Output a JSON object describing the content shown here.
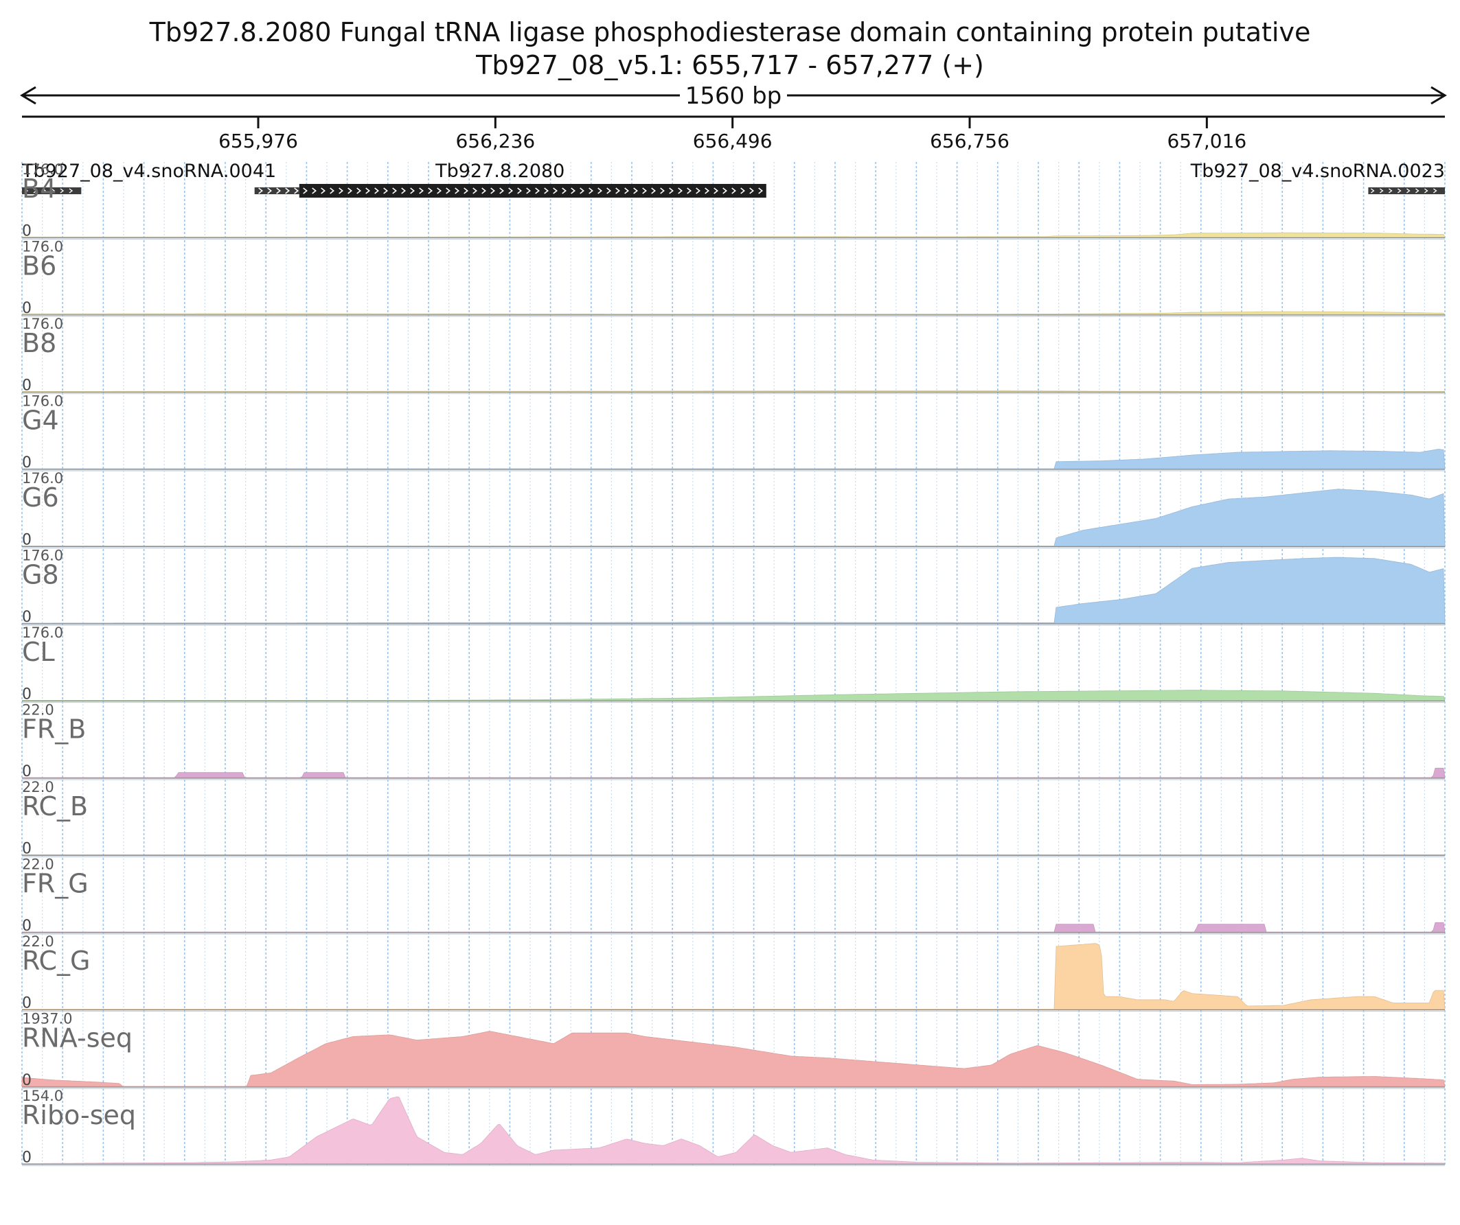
{
  "chart_data": {
    "type": "area",
    "title": "Tb927.8.2080  Fungal tRNA ligase phosphodiesterase domain containing protein  putative",
    "subtitle": "Tb927_08_v5.1: 655,717 - 657,277 (+)",
    "span_label": "1560 bp",
    "x_range": [
      655717,
      657277
    ],
    "x_ticks": [
      {
        "value": 655976,
        "label": "655,976"
      },
      {
        "value": 656236,
        "label": "656,236"
      },
      {
        "value": 656496,
        "label": "656,496"
      },
      {
        "value": 656756,
        "label": "656,756"
      },
      {
        "value": 657016,
        "label": "657,016"
      }
    ],
    "grid": true,
    "features": [
      {
        "label": "Tb927_08_v4.snoRNA.0041",
        "start": 655717,
        "end": 655782,
        "style": "small"
      },
      {
        "label": "Tb927.8.2080",
        "start": 655972,
        "end": 656533,
        "style": "gene",
        "utr_end": 656021
      },
      {
        "label": "Tb927_08_v4.snoRNA.0023",
        "start": 657193,
        "end": 657277,
        "style": "small"
      }
    ],
    "tracks": [
      {
        "name": "B4",
        "max": "176.0",
        "min": "0",
        "ymax": 176,
        "color": "#efe29a",
        "points": [
          [
            655717,
            0.5
          ],
          [
            656200,
            0.8
          ],
          [
            656500,
            1.5
          ],
          [
            656700,
            1.2
          ],
          [
            656840,
            1.5
          ],
          [
            656850,
            3
          ],
          [
            656950,
            4
          ],
          [
            656980,
            6
          ],
          [
            657000,
            10
          ],
          [
            657100,
            11
          ],
          [
            657200,
            10.5
          ],
          [
            657240,
            8
          ],
          [
            657277,
            7
          ]
        ]
      },
      {
        "name": "B6",
        "max": "176.0",
        "min": "0",
        "ymax": 176,
        "color": "#efe29a",
        "points": [
          [
            655717,
            1.5
          ],
          [
            656000,
            2
          ],
          [
            656300,
            1
          ],
          [
            656600,
            0.8
          ],
          [
            656850,
            1
          ],
          [
            656970,
            3
          ],
          [
            657000,
            5
          ],
          [
            657100,
            7
          ],
          [
            657200,
            6
          ],
          [
            657250,
            4
          ],
          [
            657277,
            3
          ]
        ]
      },
      {
        "name": "B8",
        "max": "176.0",
        "min": "0",
        "ymax": 176,
        "color": "#efe29a",
        "points": [
          [
            655717,
            0.2
          ],
          [
            656200,
            0.5
          ],
          [
            656400,
            1
          ],
          [
            656600,
            2
          ],
          [
            656800,
            2.2
          ],
          [
            656880,
            1
          ],
          [
            657000,
            0.3
          ],
          [
            657277,
            0.2
          ]
        ]
      },
      {
        "name": "G4",
        "max": "176.0",
        "min": "0",
        "ymax": 176,
        "color": "#a9cdef",
        "points": [
          [
            655717,
            0
          ],
          [
            656849,
            0
          ],
          [
            656850,
            18
          ],
          [
            656900,
            20
          ],
          [
            656950,
            25
          ],
          [
            657000,
            35
          ],
          [
            657050,
            42
          ],
          [
            657100,
            44
          ],
          [
            657150,
            46
          ],
          [
            657200,
            45
          ],
          [
            657250,
            42
          ],
          [
            657270,
            50
          ],
          [
            657277,
            48
          ]
        ]
      },
      {
        "name": "G6",
        "max": "176.0",
        "min": "0",
        "ymax": 176,
        "color": "#a9cdef",
        "points": [
          [
            655717,
            0
          ],
          [
            656849,
            0
          ],
          [
            656850,
            20
          ],
          [
            656880,
            40
          ],
          [
            656920,
            55
          ],
          [
            656960,
            70
          ],
          [
            657000,
            100
          ],
          [
            657040,
            120
          ],
          [
            657080,
            125
          ],
          [
            657120,
            135
          ],
          [
            657160,
            145
          ],
          [
            657200,
            140
          ],
          [
            657240,
            130
          ],
          [
            657260,
            120
          ],
          [
            657277,
            135
          ]
        ]
      },
      {
        "name": "G8",
        "max": "176.0",
        "min": "0",
        "ymax": 176,
        "color": "#a9cdef",
        "points": [
          [
            655717,
            0
          ],
          [
            656100,
            1
          ],
          [
            656500,
            2
          ],
          [
            656849,
            1
          ],
          [
            656850,
            40
          ],
          [
            656880,
            50
          ],
          [
            656920,
            60
          ],
          [
            656960,
            75
          ],
          [
            657000,
            140
          ],
          [
            657040,
            155
          ],
          [
            657080,
            160
          ],
          [
            657120,
            165
          ],
          [
            657160,
            168
          ],
          [
            657200,
            165
          ],
          [
            657240,
            150
          ],
          [
            657260,
            130
          ],
          [
            657277,
            140
          ]
        ]
      },
      {
        "name": "CL",
        "max": "176.0",
        "min": "0",
        "ymax": 176,
        "color": "#b2deaa",
        "points": [
          [
            655717,
            0
          ],
          [
            656150,
            0
          ],
          [
            656300,
            2
          ],
          [
            656450,
            6
          ],
          [
            656600,
            14
          ],
          [
            656700,
            18
          ],
          [
            656800,
            22
          ],
          [
            656900,
            24
          ],
          [
            657000,
            26
          ],
          [
            657100,
            24
          ],
          [
            657200,
            18
          ],
          [
            657250,
            12
          ],
          [
            657277,
            10
          ]
        ]
      },
      {
        "name": "FR_B",
        "max": "22.0",
        "min": "0",
        "ymax": 22,
        "color": "#d9a9d2",
        "points": [
          [
            655717,
            0
          ],
          [
            655886,
            0
          ],
          [
            655887,
            1.6
          ],
          [
            655960,
            1.6
          ],
          [
            655961,
            0
          ],
          [
            656024,
            0
          ],
          [
            656025,
            1.6
          ],
          [
            656070,
            1.6
          ],
          [
            656071,
            0
          ],
          [
            657264,
            0
          ],
          [
            657265,
            3
          ],
          [
            657277,
            3
          ]
        ]
      },
      {
        "name": "RC_B",
        "max": "22.0",
        "min": "0",
        "ymax": 22,
        "color": "#d9a9d2",
        "points": [
          [
            655717,
            0
          ],
          [
            657277,
            0
          ]
        ]
      },
      {
        "name": "FR_G",
        "max": "22.0",
        "min": "0",
        "ymax": 22,
        "color": "#d9a9d2",
        "points": [
          [
            655717,
            0
          ],
          [
            656849,
            0
          ],
          [
            656850,
            2.5
          ],
          [
            656892,
            2.5
          ],
          [
            656893,
            0
          ],
          [
            657004,
            0
          ],
          [
            657005,
            2.5
          ],
          [
            657080,
            2.5
          ],
          [
            657081,
            0
          ],
          [
            657264,
            0
          ],
          [
            657265,
            3
          ],
          [
            657277,
            3
          ]
        ]
      },
      {
        "name": "RC_G",
        "max": "22.0",
        "min": "0",
        "ymax": 22,
        "color": "#fcd4a4",
        "points": [
          [
            655717,
            0
          ],
          [
            656849,
            0
          ],
          [
            656850,
            20
          ],
          [
            656895,
            21
          ],
          [
            656900,
            20
          ],
          [
            656903,
            4
          ],
          [
            656920,
            4
          ],
          [
            656940,
            3
          ],
          [
            656970,
            3
          ],
          [
            656980,
            2.5
          ],
          [
            656990,
            6
          ],
          [
            657000,
            5
          ],
          [
            657050,
            4
          ],
          [
            657060,
            1
          ],
          [
            657100,
            1.2
          ],
          [
            657130,
            3
          ],
          [
            657180,
            4
          ],
          [
            657200,
            4
          ],
          [
            657220,
            2
          ],
          [
            657260,
            2
          ],
          [
            657265,
            6
          ],
          [
            657277,
            6
          ]
        ]
      },
      {
        "name": "RNA-seq",
        "max": "1937.0",
        "min": "0",
        "ymax": 1937,
        "color": "#f2aeac",
        "points": [
          [
            655717,
            250
          ],
          [
            655750,
            180
          ],
          [
            655800,
            120
          ],
          [
            655825,
            80
          ],
          [
            655826,
            0
          ],
          [
            655965,
            0
          ],
          [
            655966,
            300
          ],
          [
            655990,
            380
          ],
          [
            656020,
            800
          ],
          [
            656050,
            1200
          ],
          [
            656080,
            1400
          ],
          [
            656120,
            1450
          ],
          [
            656150,
            1300
          ],
          [
            656200,
            1400
          ],
          [
            656230,
            1550
          ],
          [
            656250,
            1450
          ],
          [
            656300,
            1200
          ],
          [
            656320,
            1500
          ],
          [
            656380,
            1500
          ],
          [
            656400,
            1400
          ],
          [
            656450,
            1250
          ],
          [
            656500,
            1100
          ],
          [
            656560,
            850
          ],
          [
            656600,
            800
          ],
          [
            656650,
            700
          ],
          [
            656700,
            600
          ],
          [
            656750,
            500
          ],
          [
            656780,
            600
          ],
          [
            656800,
            900
          ],
          [
            656830,
            1150
          ],
          [
            656860,
            950
          ],
          [
            656900,
            600
          ],
          [
            656940,
            200
          ],
          [
            656980,
            150
          ],
          [
            657000,
            50
          ],
          [
            657050,
            60
          ],
          [
            657070,
            80
          ],
          [
            657090,
            100
          ],
          [
            657100,
            150
          ],
          [
            657110,
            200
          ],
          [
            657140,
            260
          ],
          [
            657200,
            280
          ],
          [
            657250,
            220
          ],
          [
            657277,
            180
          ]
        ]
      },
      {
        "name": "Ribo-seq",
        "max": "154.0",
        "min": "0",
        "ymax": 154,
        "color": "#f5c2dc",
        "points": [
          [
            655717,
            0
          ],
          [
            655800,
            1
          ],
          [
            655900,
            2
          ],
          [
            655950,
            4
          ],
          [
            655990,
            8
          ],
          [
            656010,
            15
          ],
          [
            656040,
            60
          ],
          [
            656080,
            100
          ],
          [
            656100,
            85
          ],
          [
            656120,
            145
          ],
          [
            656130,
            150
          ],
          [
            656150,
            60
          ],
          [
            656180,
            25
          ],
          [
            656200,
            20
          ],
          [
            656220,
            45
          ],
          [
            656240,
            90
          ],
          [
            656260,
            40
          ],
          [
            656280,
            20
          ],
          [
            656300,
            30
          ],
          [
            656350,
            35
          ],
          [
            656380,
            55
          ],
          [
            656400,
            45
          ],
          [
            656420,
            40
          ],
          [
            656440,
            55
          ],
          [
            656460,
            40
          ],
          [
            656480,
            15
          ],
          [
            656500,
            25
          ],
          [
            656520,
            65
          ],
          [
            656540,
            40
          ],
          [
            656560,
            25
          ],
          [
            656600,
            35
          ],
          [
            656620,
            20
          ],
          [
            656650,
            8
          ],
          [
            656700,
            3
          ],
          [
            656800,
            1
          ],
          [
            656900,
            2
          ],
          [
            657000,
            3
          ],
          [
            657050,
            2
          ],
          [
            657100,
            8
          ],
          [
            657120,
            12
          ],
          [
            657140,
            6
          ],
          [
            657200,
            2
          ],
          [
            657277,
            1
          ]
        ]
      }
    ]
  }
}
